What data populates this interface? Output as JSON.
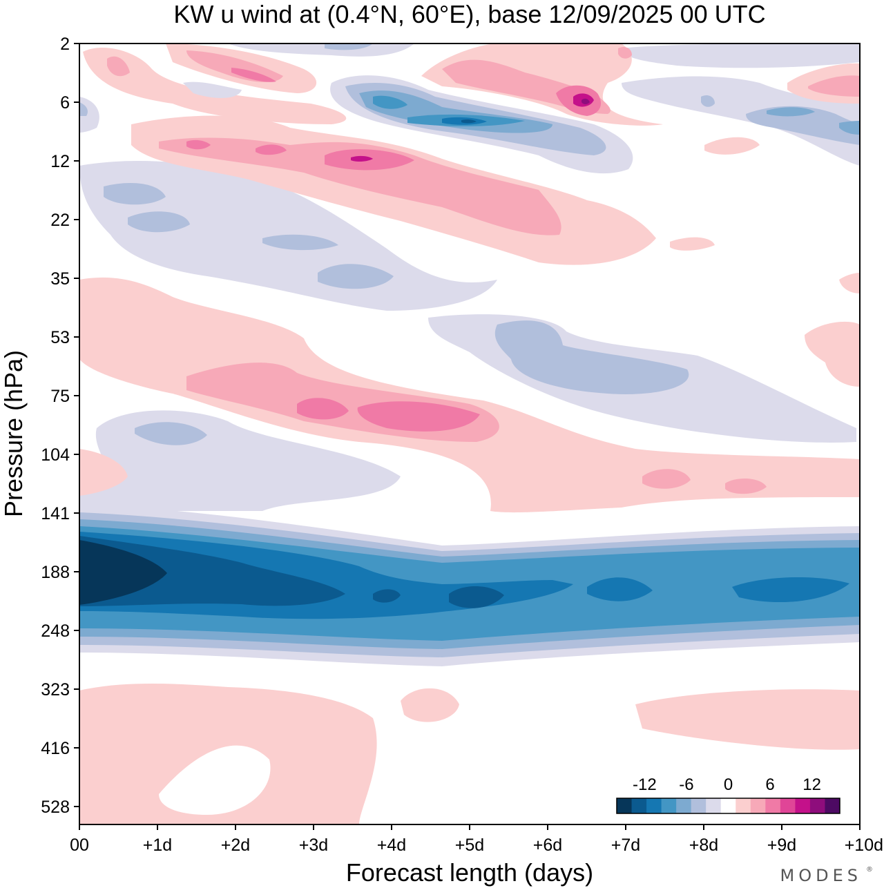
{
  "chart_data": {
    "type": "heatmap",
    "title": "KW u wind at (0.4°N, 60°E),  base 12/09/2025  00 UTC",
    "xlabel": "Forecast length (days)",
    "ylabel": "Pressure (hPa)",
    "x_ticks": [
      "00",
      "+1d",
      "+2d",
      "+3d",
      "+4d",
      "+5d",
      "+6d",
      "+7d",
      "+8d",
      "+9d",
      "+10d"
    ],
    "y_ticks": [
      "2",
      "6",
      "12",
      "22",
      "35",
      "53",
      "75",
      "104",
      "141",
      "188",
      "248",
      "323",
      "416",
      "528"
    ],
    "x_range_days": [
      0,
      10
    ],
    "colorbar": {
      "tick_labels": [
        "-12",
        "-6",
        "0",
        "6",
        "12"
      ],
      "levels": [
        -16,
        -14,
        -12,
        -10,
        -8,
        -6,
        -4,
        -2,
        0,
        2,
        4,
        6,
        8,
        10,
        12,
        14,
        16
      ],
      "colors": [
        "#063659",
        "#0b5a8f",
        "#1577b2",
        "#4396c4",
        "#7daad0",
        "#b1bfdc",
        "#dcdbeb",
        "#ffffff",
        "#fbcfcf",
        "#f7a9b8",
        "#f07aa6",
        "#e04597",
        "#c4118a",
        "#8e0d7c",
        "#4d0a63"
      ]
    },
    "features": [
      {
        "sign": "negative",
        "peak": -14,
        "pressure_hPa": "141-300",
        "days": "0-10",
        "note": "strong easterly band centred near 188-220 hPa, weakening after day 2"
      },
      {
        "sign": "positive",
        "peak": 9,
        "pressure_hPa": "60-100",
        "days": "1-6",
        "note": "westerly anomaly descending with time"
      },
      {
        "sign": "negative",
        "peak": -6,
        "pressure_hPa": "35-75",
        "days": "4.5-8",
        "note": "easterly anomaly"
      },
      {
        "sign": "positive",
        "peak": 10,
        "pressure_hPa": "6-22",
        "days": "1-7",
        "note": "upper westerly band with peak near day 3.5"
      },
      {
        "sign": "negative",
        "peak": -8,
        "pressure_hPa": "4-10",
        "days": "3.5-10",
        "note": "upper easterly band"
      },
      {
        "sign": "positive",
        "peak": 4,
        "pressure_hPa": "300-600",
        "days": "0-10",
        "note": "weak lower tropospheric westerlies"
      }
    ]
  },
  "branding": {
    "text": "MODES"
  }
}
